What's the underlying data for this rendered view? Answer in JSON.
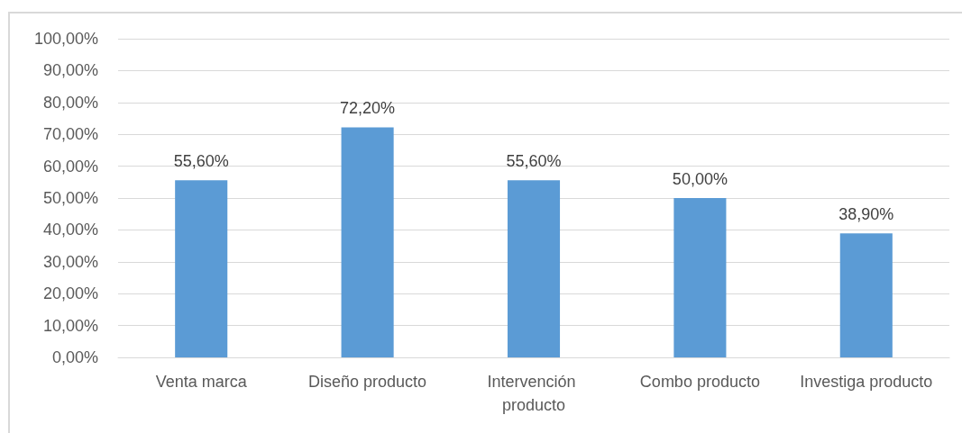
{
  "chart_data": {
    "type": "bar",
    "categories": [
      "Venta marca",
      "Diseño producto",
      "Intervención producto",
      "Combo producto",
      "Investiga producto"
    ],
    "values": [
      55.6,
      72.2,
      55.6,
      50,
      38.9
    ],
    "value_labels": [
      "55,60%",
      "72,20%",
      "55,60%",
      "50,00%",
      "38,90%"
    ],
    "color": "#5b9bd5",
    "ylim": [
      0,
      100
    ],
    "yticks": [
      {
        "value": 0,
        "label": "0,00%"
      },
      {
        "value": 10,
        "label": "10,00%"
      },
      {
        "value": 20,
        "label": "20,00%"
      },
      {
        "value": 30,
        "label": "30,00%"
      },
      {
        "value": 40,
        "label": "40,00%"
      },
      {
        "value": 50,
        "label": "50,00%"
      },
      {
        "value": 60,
        "label": "60,00%"
      },
      {
        "value": 70,
        "label": "70,00%"
      },
      {
        "value": 80,
        "label": "80,00%"
      },
      {
        "value": 90,
        "label": "90,00%"
      },
      {
        "value": 100,
        "label": "100,00%"
      }
    ],
    "grid": "y"
  }
}
